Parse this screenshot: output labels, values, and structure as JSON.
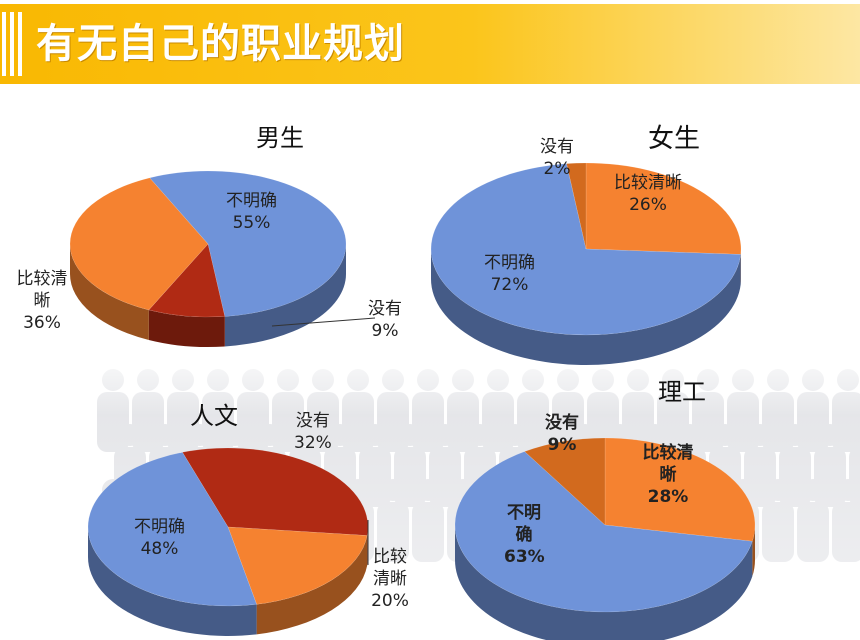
{
  "header": {
    "title": "有无自己的职业规划"
  },
  "colors": {
    "accent": "#f9b802",
    "blue": "#6f93d9",
    "orange": "#f58230",
    "darkred": "#b02a14"
  },
  "chart_data": [
    {
      "type": "pie",
      "title": "男生",
      "slices": [
        {
          "label": "不明确",
          "value": 55,
          "pct": "55%",
          "color": "#6f93d9"
        },
        {
          "label": "没有",
          "value": 9,
          "pct": "9%",
          "color": "#b02a14"
        },
        {
          "label": "比较清晰",
          "value": 36,
          "pct": "36%",
          "color": "#f58230"
        }
      ]
    },
    {
      "type": "pie",
      "title": "女生",
      "slices": [
        {
          "label": "比较清晰",
          "value": 26,
          "pct": "26%",
          "color": "#f58230"
        },
        {
          "label": "不明确",
          "value": 72,
          "pct": "72%",
          "color": "#6f93d9"
        },
        {
          "label": "没有",
          "value": 2,
          "pct": "2%",
          "color": "#d26a1e"
        }
      ]
    },
    {
      "type": "pie",
      "title": "人文",
      "slices": [
        {
          "label": "没有",
          "value": 32,
          "pct": "32%",
          "color": "#b02a14"
        },
        {
          "label": "比较清晰",
          "value": 20,
          "pct": "20%",
          "color": "#f58230"
        },
        {
          "label": "不明确",
          "value": 48,
          "pct": "48%",
          "color": "#6f93d9"
        }
      ]
    },
    {
      "type": "pie",
      "title": "理工",
      "slices": [
        {
          "label": "比较清晰",
          "value": 28,
          "pct": "28%",
          "color": "#f58230"
        },
        {
          "label": "不明确",
          "value": 63,
          "pct": "63%",
          "color": "#6f93d9"
        },
        {
          "label": "没有",
          "value": 9,
          "pct": "9%",
          "color": "#d26a1e"
        }
      ]
    }
  ]
}
